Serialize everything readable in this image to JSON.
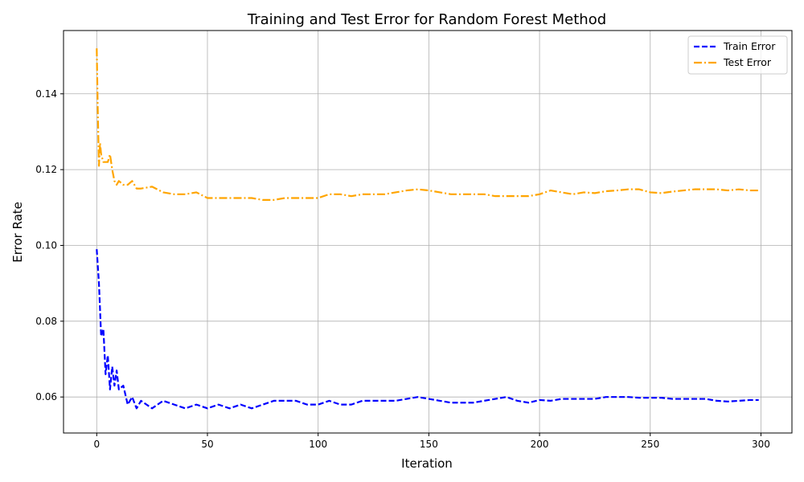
{
  "chart_data": {
    "type": "line",
    "title": "Training and Test Error for Random Forest Method",
    "xlabel": "Iteration",
    "ylabel": "Error Rate",
    "xlim": [
      -15,
      314
    ],
    "ylim": [
      0.0505,
      0.1567
    ],
    "xticks": [
      0,
      50,
      100,
      150,
      200,
      250,
      300
    ],
    "xtick_labels": [
      "0",
      "50",
      "100",
      "150",
      "200",
      "250",
      "300"
    ],
    "yticks": [
      0.06,
      0.08,
      0.1,
      0.12,
      0.14
    ],
    "ytick_labels": [
      "0.06",
      "0.08",
      "0.10",
      "0.12",
      "0.14"
    ],
    "grid": true,
    "legend_position": "top-right",
    "series": [
      {
        "name": "Train Error",
        "color": "#0000ff",
        "style": "dashed",
        "x": [
          0,
          1,
          2,
          3,
          4,
          5,
          6,
          7,
          8,
          9,
          10,
          12,
          14,
          16,
          18,
          20,
          25,
          30,
          35,
          40,
          45,
          50,
          55,
          60,
          65,
          70,
          75,
          80,
          85,
          90,
          95,
          100,
          105,
          110,
          115,
          120,
          125,
          130,
          135,
          140,
          145,
          150,
          155,
          160,
          165,
          170,
          175,
          180,
          185,
          190,
          195,
          200,
          205,
          210,
          215,
          220,
          225,
          230,
          235,
          240,
          245,
          250,
          255,
          260,
          265,
          270,
          275,
          280,
          285,
          290,
          295,
          299
        ],
        "values": [
          0.099,
          0.09,
          0.076,
          0.078,
          0.066,
          0.071,
          0.062,
          0.068,
          0.063,
          0.067,
          0.062,
          0.063,
          0.058,
          0.06,
          0.057,
          0.059,
          0.057,
          0.059,
          0.058,
          0.057,
          0.058,
          0.057,
          0.058,
          0.057,
          0.058,
          0.057,
          0.058,
          0.059,
          0.059,
          0.059,
          0.058,
          0.058,
          0.059,
          0.058,
          0.058,
          0.059,
          0.059,
          0.059,
          0.059,
          0.0595,
          0.06,
          0.0595,
          0.059,
          0.0585,
          0.0585,
          0.0585,
          0.059,
          0.0595,
          0.06,
          0.059,
          0.0585,
          0.0592,
          0.059,
          0.0595,
          0.0595,
          0.0595,
          0.0595,
          0.06,
          0.06,
          0.06,
          0.0598,
          0.0598,
          0.0598,
          0.0595,
          0.0595,
          0.0595,
          0.0595,
          0.059,
          0.0588,
          0.059,
          0.0592,
          0.0592
        ]
      },
      {
        "name": "Test Error",
        "color": "#ffa500",
        "style": "dashdot",
        "x": [
          0,
          0.5,
          1,
          1.5,
          2,
          3,
          4,
          5,
          6,
          7,
          8,
          9,
          10,
          12,
          14,
          16,
          18,
          20,
          25,
          30,
          35,
          40,
          45,
          50,
          55,
          60,
          65,
          70,
          75,
          80,
          85,
          90,
          95,
          100,
          105,
          110,
          115,
          120,
          125,
          130,
          135,
          140,
          145,
          150,
          155,
          160,
          165,
          170,
          175,
          180,
          185,
          190,
          195,
          200,
          205,
          210,
          215,
          220,
          225,
          230,
          235,
          240,
          245,
          250,
          255,
          260,
          265,
          270,
          275,
          280,
          285,
          290,
          295,
          299
        ],
        "values": [
          0.152,
          0.135,
          0.121,
          0.127,
          0.124,
          0.122,
          0.122,
          0.122,
          0.124,
          0.12,
          0.117,
          0.116,
          0.117,
          0.116,
          0.116,
          0.117,
          0.115,
          0.115,
          0.1155,
          0.114,
          0.1135,
          0.1135,
          0.114,
          0.1125,
          0.1125,
          0.1125,
          0.1125,
          0.1125,
          0.112,
          0.112,
          0.1125,
          0.1125,
          0.1125,
          0.1125,
          0.1135,
          0.1135,
          0.113,
          0.1135,
          0.1135,
          0.1135,
          0.114,
          0.1145,
          0.1148,
          0.1145,
          0.114,
          0.1135,
          0.1135,
          0.1135,
          0.1135,
          0.113,
          0.113,
          0.113,
          0.113,
          0.1135,
          0.1145,
          0.114,
          0.1135,
          0.114,
          0.1138,
          0.1143,
          0.1145,
          0.1148,
          0.1148,
          0.114,
          0.1138,
          0.1142,
          0.1145,
          0.1148,
          0.1148,
          0.1148,
          0.1145,
          0.1148,
          0.1145,
          0.1145
        ]
      }
    ]
  }
}
